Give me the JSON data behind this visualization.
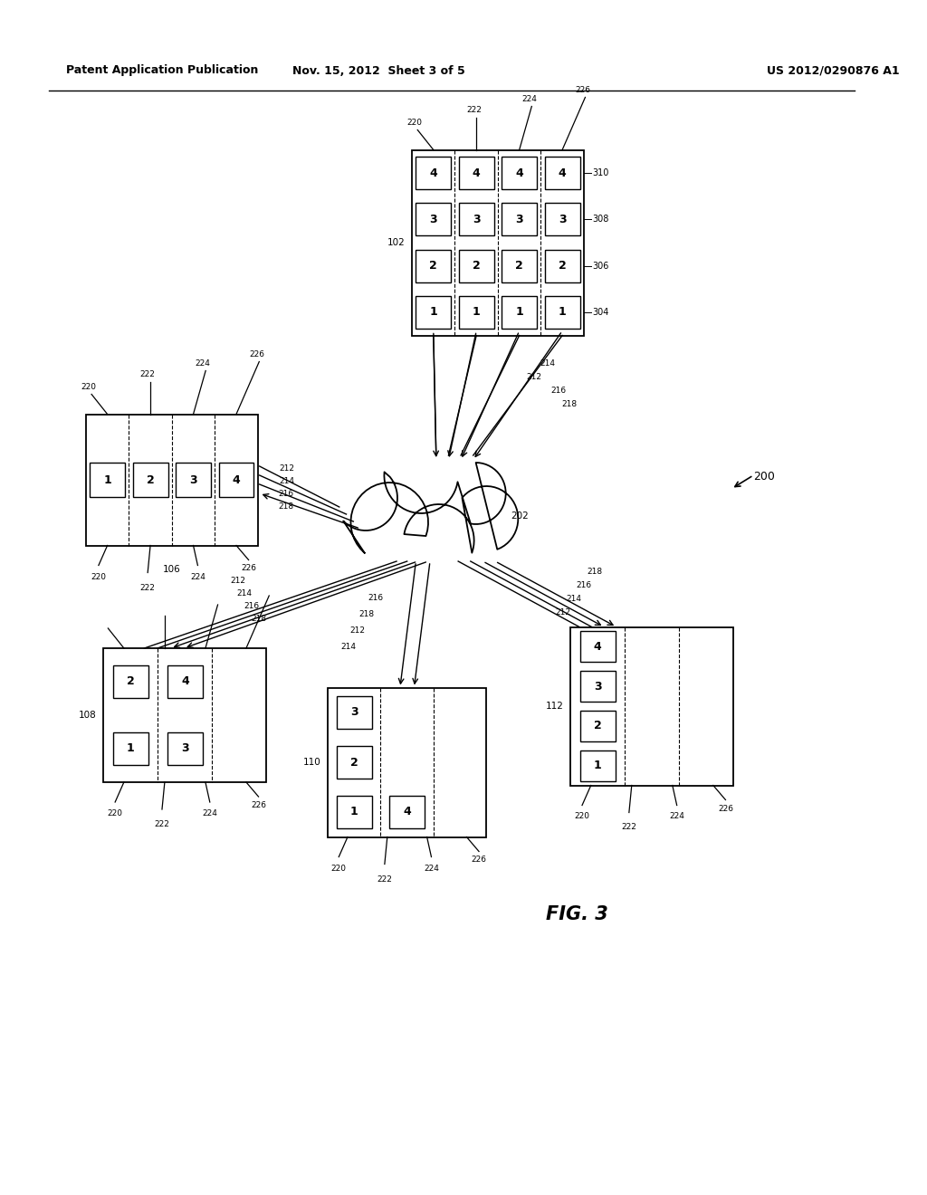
{
  "bg_color": "#ffffff",
  "header_left": "Patent Application Publication",
  "header_center": "Nov. 15, 2012  Sheet 3 of 5",
  "header_right": "US 2012/0290876 A1",
  "fig_label": "FIG. 3",
  "diagram_ref": "200"
}
